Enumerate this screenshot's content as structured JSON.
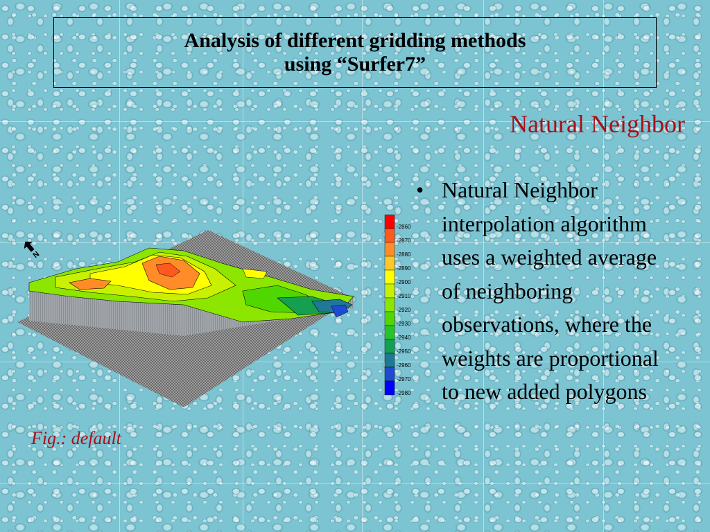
{
  "slide": {
    "title": "Analysis of different gridding methods using “Surfer7”",
    "subtitle": "Natural Neighbor",
    "bullets": [
      "Natural Neighbor interpolation algorithm uses a weighted average of neighboring observations, where the weights are proportional to new added polygons"
    ],
    "caption": "Fig.: default"
  },
  "figure": {
    "legend_levels": [
      "-2860",
      "-2870",
      "-2880",
      "-2890",
      "-2900",
      "-2910",
      "-2920",
      "-2930",
      "-2940",
      "-2950",
      "-2960",
      "-2970",
      "-2980"
    ],
    "legend_colors": [
      "#ff0000",
      "#ff5a1e",
      "#ff8c28",
      "#ffc828",
      "#ffff00",
      "#c8f000",
      "#8ce600",
      "#50d700",
      "#28c328",
      "#14a050",
      "#1e7896",
      "#1e4bd2",
      "#0000ff"
    ],
    "north_arrow_label": "N"
  },
  "colors": {
    "accent": "#a8101a",
    "background": "#7cc4d2"
  }
}
